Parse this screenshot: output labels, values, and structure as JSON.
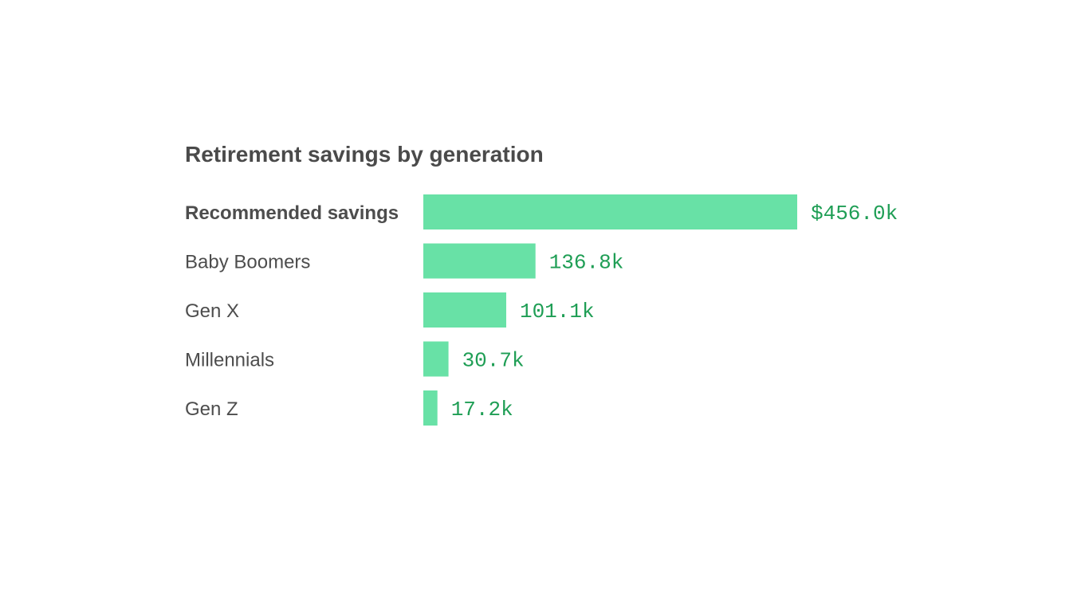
{
  "chart_data": {
    "type": "bar",
    "orientation": "horizontal",
    "title": "Retirement savings by generation",
    "categories": [
      "Recommended savings",
      "Baby Boomers",
      "Gen X",
      "Millennials",
      "Gen Z"
    ],
    "values": [
      456.0,
      136.8,
      101.1,
      30.7,
      17.2
    ],
    "value_labels": [
      "$456.0k",
      "136.8k",
      "101.1k",
      "30.7k",
      "17.2k"
    ],
    "highlight_categories": [
      "Recommended savings"
    ],
    "unit": "thousand USD",
    "xlim": [
      0,
      456.0
    ],
    "grid": false,
    "legend": "none",
    "colors": {
      "bar": "#68e1a6",
      "value_text": "#1f9e55",
      "title_text": "#4a4a4a",
      "label_text": "#4d4d4d"
    }
  }
}
